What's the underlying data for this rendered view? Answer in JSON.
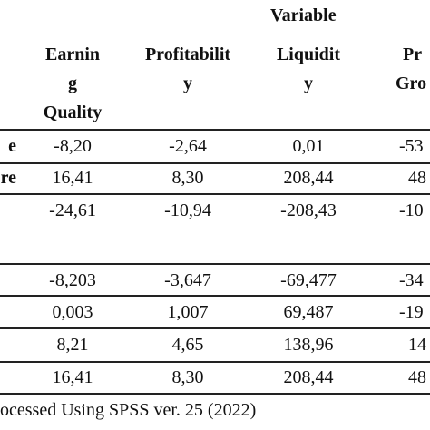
{
  "header": {
    "group_label": "Variable",
    "columns": [
      {
        "lines": [
          "Earnin",
          "g",
          "Quality"
        ]
      },
      {
        "lines": [
          "Profitabilit",
          "y"
        ]
      },
      {
        "lines": [
          "Liquidit",
          "y"
        ]
      },
      {
        "lines": [
          "Pr",
          "Gro"
        ]
      }
    ]
  },
  "rows": [
    {
      "label": "e",
      "cells": [
        "-8,20",
        "-2,64",
        "0,01",
        "-53"
      ]
    },
    {
      "label": "re",
      "cells": [
        "16,41",
        "8,30",
        "208,44",
        "48"
      ]
    },
    {
      "label": "",
      "cells": [
        "-24,61",
        "-10,94",
        "-208,43",
        "-10"
      ]
    },
    {
      "label": "",
      "cells": [
        "-8,203",
        "-3,647",
        "-69,477",
        "-34"
      ]
    },
    {
      "label": "",
      "cells": [
        "0,003",
        "1,007",
        "69,487",
        "-19"
      ]
    },
    {
      "label": "",
      "cells": [
        "8,21",
        "4,65",
        "138,96",
        "14"
      ]
    },
    {
      "label": "",
      "cells": [
        "16,41",
        "8,30",
        "208,44",
        "48"
      ]
    }
  ],
  "footer": "ocessed Using SPSS ver. 25 (2022)"
}
